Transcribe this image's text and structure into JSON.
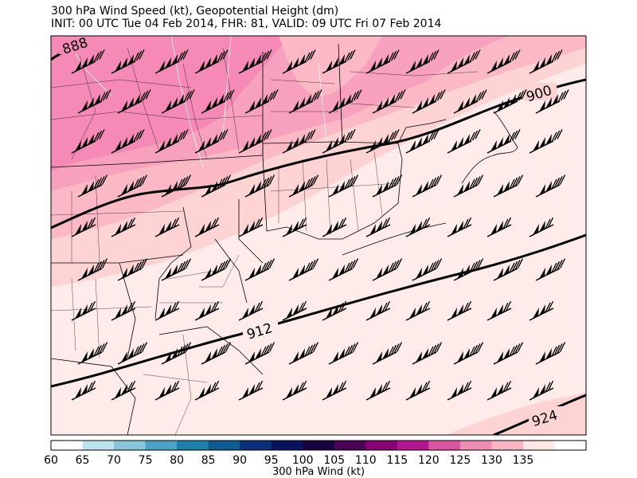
{
  "title": {
    "line1": "300 hPa Wind Speed (kt), Geopotential Height (dm)",
    "line2": "INIT: 00 UTC Tue 04 Feb 2014, FHR: 81, VALID: 09 UTC Fri 07 Feb 2014"
  },
  "contours": [
    {
      "label": "888"
    },
    {
      "label": "900"
    },
    {
      "label": "912"
    },
    {
      "label": "924"
    }
  ],
  "colorbar": {
    "label": "300 hPa Wind (kt)",
    "ticks": [
      "60",
      "65",
      "70",
      "75",
      "80",
      "85",
      "90",
      "95",
      "100",
      "105",
      "110",
      "115",
      "120",
      "125",
      "130",
      "135"
    ],
    "colors": [
      "#ffffff",
      "#bfe3ee",
      "#88c6da",
      "#4aa3c4",
      "#1d7fae",
      "#0e5b92",
      "#0b2f78",
      "#0a145e",
      "#16003f",
      "#4a0055",
      "#8a0077",
      "#b3168f",
      "#d9559f",
      "#ef8cb3",
      "#f8b4c2",
      "#fde8e6",
      "#ffffff"
    ]
  },
  "wind_field": {
    "fill_colors": {
      "110-115": "#f48ab5",
      "115-120": "#f7a1bf",
      "120-125": "#fbb9c5",
      "125-130": "#fdd3d3",
      "130-135": "#ffecea"
    }
  }
}
